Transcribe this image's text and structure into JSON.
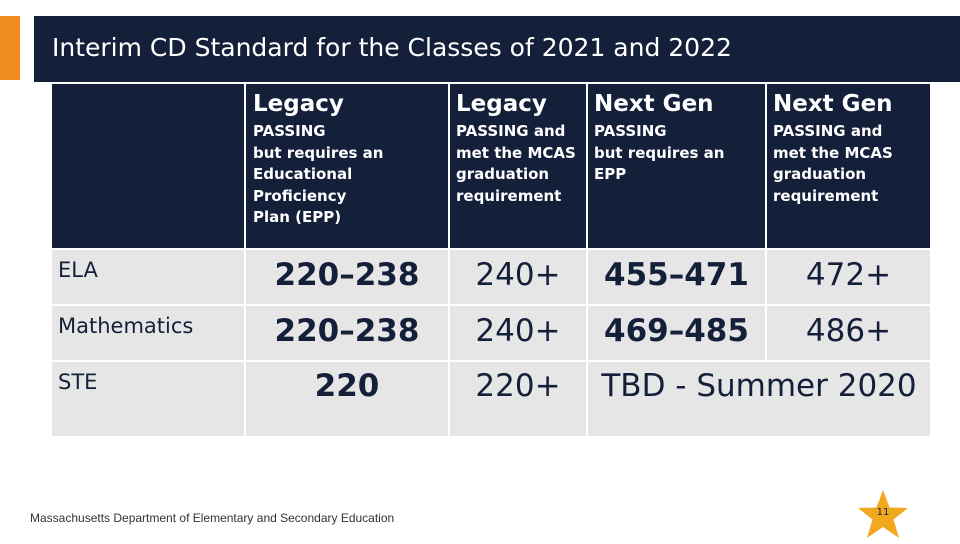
{
  "title": "Interim CD Standard for the Classes of 2021 and 2022",
  "columns": [
    {
      "title": "Legacy",
      "desc": [
        "PASSING",
        "but requires an",
        "Educational",
        "Proficiency",
        "Plan (EPP)"
      ]
    },
    {
      "title": "Legacy",
      "desc": [
        "PASSING and",
        "met the MCAS",
        "graduation",
        "requirement"
      ]
    },
    {
      "title": "Next Gen",
      "desc": [
        "PASSING",
        "but requires an",
        "EPP"
      ]
    },
    {
      "title": "Next Gen",
      "desc": [
        "PASSING and",
        "met the MCAS",
        "graduation",
        "requirement"
      ]
    }
  ],
  "rows": [
    {
      "label": "ELA",
      "values": [
        "220–238",
        "240+",
        "455–471",
        "472+"
      ]
    },
    {
      "label": "Mathematics",
      "values": [
        "220–238",
        "240+",
        "469–485",
        "486+"
      ]
    },
    {
      "label": "STE",
      "values": [
        "220",
        "220+"
      ],
      "merged": "TBD - Summer 2020"
    }
  ],
  "footer": "Massachusetts Department of Elementary and Secondary Education",
  "page_number": "11",
  "colors": {
    "navy": "#14203a",
    "accent": "#f08c1e",
    "light": "#e6e6e6",
    "star": "#f2a81d"
  }
}
